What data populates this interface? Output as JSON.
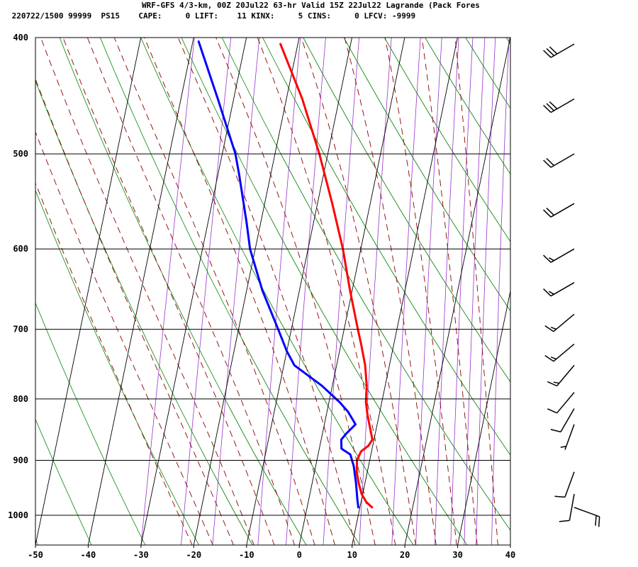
{
  "header": {
    "line1": "WRF-GFS 4/3-km, 00Z 20Jul22 63-hr Valid 15Z 22Jul22 Lagrande (Pack Fores",
    "line2": " 220722/1500 99999  PS15    CAPE:     0 LIFT:    11 KINX:     5 CINS:     0 LFCV: -9999"
  },
  "chart_data": {
    "type": "line",
    "title": "",
    "xlabel": "",
    "ylabel": "",
    "x_scale": "skewed temperature (C)",
    "y_scale": "log pressure (hPa)",
    "xlim": [
      -50,
      40
    ],
    "ylim": [
      1040,
      400
    ],
    "x_ticks": [
      -50,
      -40,
      -30,
      -20,
      -10,
      0,
      10,
      20,
      30,
      40
    ],
    "x_tick_labels": [
      "-50",
      "-40",
      "-30",
      "-20",
      "-10",
      "0",
      "10",
      "20",
      "30",
      "40"
    ],
    "y_ticks": [
      400,
      500,
      600,
      700,
      800,
      900,
      1000
    ],
    "y_tick_labels": [
      "400",
      "500",
      "600",
      "700",
      "800",
      "900",
      "1000"
    ],
    "grid": true,
    "background_lines": {
      "dry_adiabats_color": "#008000",
      "moist_adiabats_color": "#8b0000",
      "mixing_ratio_color": "#9932cc"
    },
    "series": [
      {
        "color": "#ff0000",
        "points": [
          {
            "p": 985,
            "t": 12.3
          },
          {
            "p": 975,
            "t": 11.0
          },
          {
            "p": 960,
            "t": 9.8
          },
          {
            "p": 940,
            "t": 8.8
          },
          {
            "p": 920,
            "t": 8.0
          },
          {
            "p": 900,
            "t": 7.6
          },
          {
            "p": 885,
            "t": 8.0
          },
          {
            "p": 875,
            "t": 9.2
          },
          {
            "p": 865,
            "t": 9.7
          },
          {
            "p": 850,
            "t": 9.0
          },
          {
            "p": 825,
            "t": 7.8
          },
          {
            "p": 805,
            "t": 7.0
          },
          {
            "p": 780,
            "t": 6.5
          },
          {
            "p": 750,
            "t": 5.4
          },
          {
            "p": 720,
            "t": 3.8
          },
          {
            "p": 700,
            "t": 2.6
          },
          {
            "p": 650,
            "t": -0.4
          },
          {
            "p": 600,
            "t": -3.4
          },
          {
            "p": 550,
            "t": -7.2
          },
          {
            "p": 500,
            "t": -11.6
          },
          {
            "p": 450,
            "t": -17.0
          },
          {
            "p": 405,
            "t": -23.3
          }
        ]
      },
      {
        "color": "#0000ff",
        "points": [
          {
            "p": 985,
            "t": 9.7
          },
          {
            "p": 970,
            "t": 9.2
          },
          {
            "p": 940,
            "t": 8.3
          },
          {
            "p": 910,
            "t": 7.2
          },
          {
            "p": 890,
            "t": 6.1
          },
          {
            "p": 880,
            "t": 4.2
          },
          {
            "p": 865,
            "t": 3.8
          },
          {
            "p": 855,
            "t": 4.5
          },
          {
            "p": 840,
            "t": 5.9
          },
          {
            "p": 820,
            "t": 4.0
          },
          {
            "p": 805,
            "t": 2.0
          },
          {
            "p": 780,
            "t": -2.0
          },
          {
            "p": 750,
            "t": -8.0
          },
          {
            "p": 730,
            "t": -10.0
          },
          {
            "p": 700,
            "t": -12.5
          },
          {
            "p": 650,
            "t": -17.0
          },
          {
            "p": 600,
            "t": -21.0
          },
          {
            "p": 570,
            "t": -22.7
          },
          {
            "p": 520,
            "t": -26.0
          },
          {
            "p": 500,
            "t": -27.5
          },
          {
            "p": 450,
            "t": -33.0
          },
          {
            "p": 403,
            "t": -38.9
          }
        ]
      }
    ],
    "wind_barbs": [
      {
        "p": 405,
        "dir": 240,
        "kt": 30
      },
      {
        "p": 450,
        "dir": 240,
        "kt": 30
      },
      {
        "p": 500,
        "dir": 240,
        "kt": 20
      },
      {
        "p": 550,
        "dir": 240,
        "kt": 20
      },
      {
        "p": 600,
        "dir": 240,
        "kt": 15
      },
      {
        "p": 640,
        "dir": 240,
        "kt": 15
      },
      {
        "p": 680,
        "dir": 230,
        "kt": 15
      },
      {
        "p": 720,
        "dir": 230,
        "kt": 15
      },
      {
        "p": 750,
        "dir": 220,
        "kt": 15
      },
      {
        "p": 790,
        "dir": 220,
        "kt": 10
      },
      {
        "p": 815,
        "dir": 210,
        "kt": 10
      },
      {
        "p": 840,
        "dir": 200,
        "kt": 5
      },
      {
        "p": 920,
        "dir": 200,
        "kt": 10
      },
      {
        "p": 960,
        "dir": 190,
        "kt": 10
      },
      {
        "p": 985,
        "dir": 110,
        "kt": 20
      }
    ]
  }
}
